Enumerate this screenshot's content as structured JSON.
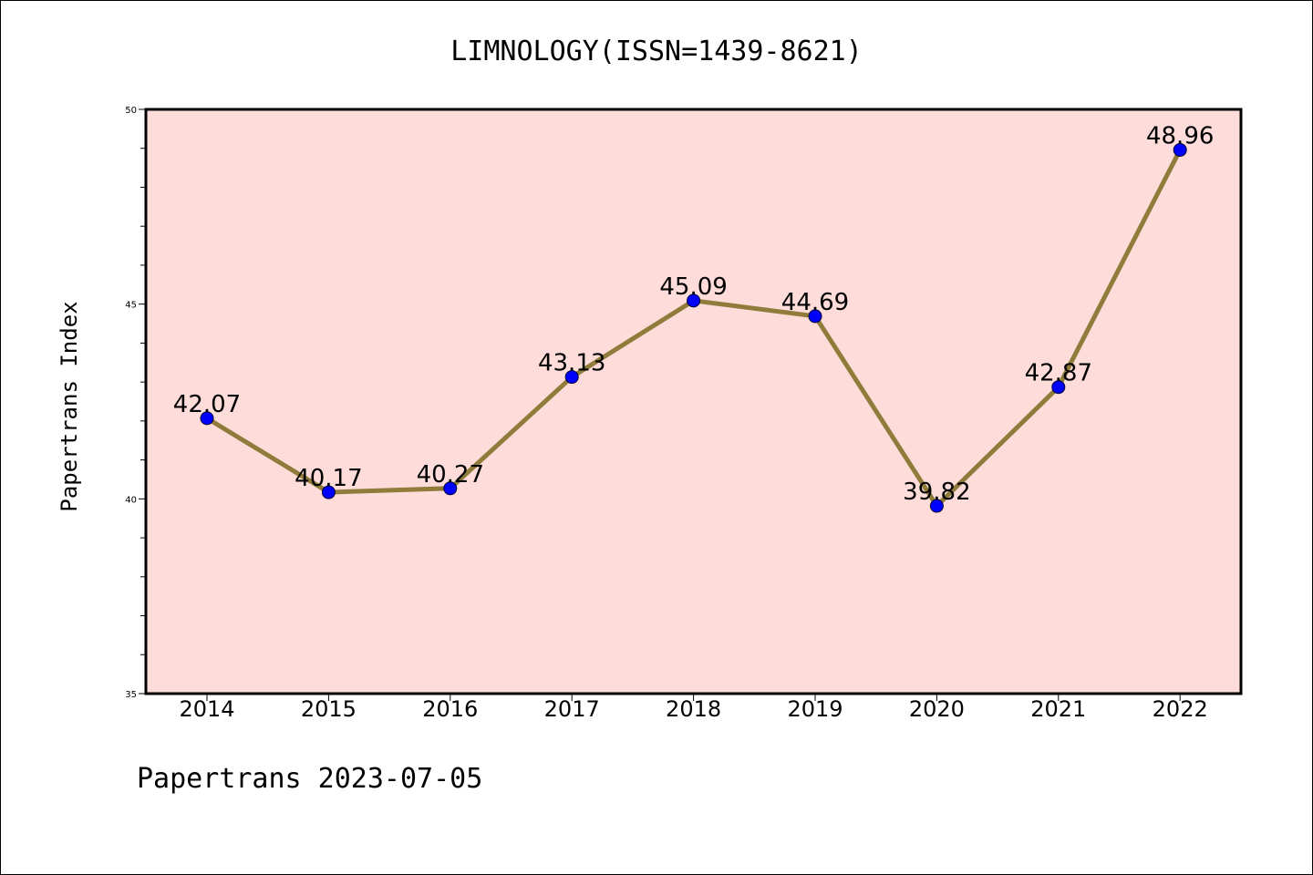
{
  "chart_data": {
    "type": "line",
    "title": "LIMNOLOGY(ISSN=1439-8621)",
    "xlabel": "",
    "ylabel": "Papertrans Index",
    "categories": [
      "2014",
      "2015",
      "2016",
      "2017",
      "2018",
      "2019",
      "2020",
      "2021",
      "2022"
    ],
    "series": [
      {
        "values": [
          42.07,
          40.17,
          40.27,
          43.13,
          45.09,
          44.69,
          39.82,
          42.87,
          48.96
        ],
        "labels": [
          "42.07",
          "40.17",
          "40.27",
          "43.13",
          "45.09",
          "44.69",
          "39.82",
          "42.87",
          "48.96"
        ]
      }
    ],
    "ylim": [
      35,
      50
    ],
    "yticks": [
      "35",
      "40",
      "45",
      "50"
    ],
    "grid": false,
    "colors": {
      "plot_background": "#fddcda",
      "line": "#8f7c3a",
      "marker": "#0000ff"
    }
  },
  "footer": "Papertrans 2023-07-05"
}
